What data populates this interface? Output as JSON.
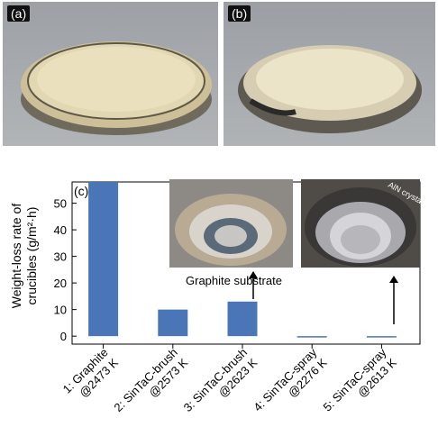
{
  "panels": [
    {
      "label": "(a)"
    },
    {
      "label": "(b)"
    }
  ],
  "chart_panel_label": "(c)",
  "inset_annotations": {
    "graphite_substrate": "Graphite substrate",
    "aln_crystals": "AlN crystals"
  },
  "colors": {
    "bar": "#4a76b8",
    "photo_bg": "#a3a7ac"
  },
  "chart_data": {
    "type": "bar",
    "categories": [
      [
        "1: Graphite",
        "@2473 K"
      ],
      [
        "2: SinTaC-brush",
        "@2573 K"
      ],
      [
        "3: SinTaC-brush",
        "@2623 K"
      ],
      [
        "4: SinTaC-spray",
        "@2276 K"
      ],
      [
        "5: SinTaC-spray",
        "@2613 K"
      ]
    ],
    "values": [
      58,
      10,
      13,
      -0.3,
      -0.3
    ],
    "ylabel": [
      "Weight-loss rate of",
      "crucibles (g/m²·h)"
    ],
    "yticks": [
      0,
      10,
      20,
      30,
      40,
      50
    ],
    "ylim": [
      -3,
      58
    ]
  }
}
